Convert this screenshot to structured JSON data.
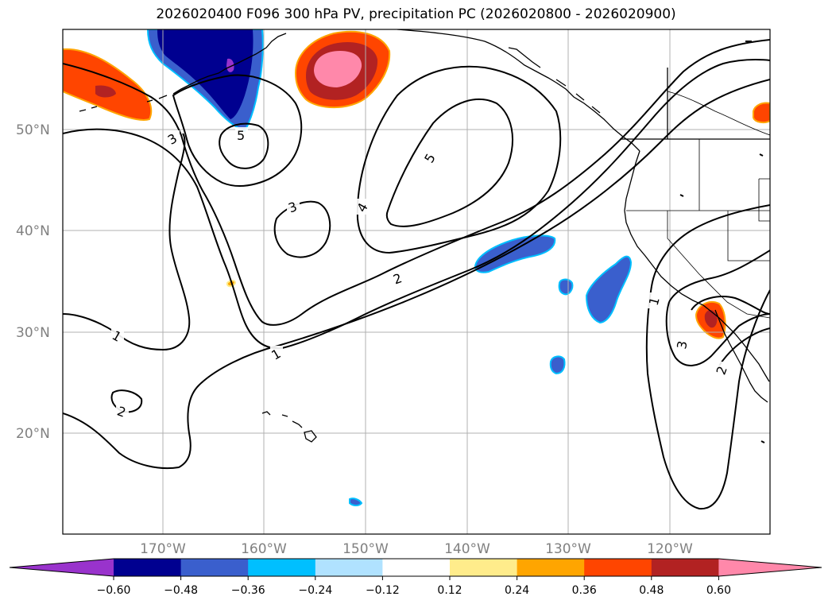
{
  "title": "2026020400 F096 300 hPa PV, precipitation PC (2026020800 - 2026020900)",
  "lat_labels": [
    "50°N",
    "40°N",
    "30°N",
    "20°N"
  ],
  "lon_labels": [
    "170°W",
    "160°W",
    "150°W",
    "140°W",
    "130°W",
    "120°W"
  ],
  "colorbar": {
    "ticks": [
      "−0.60",
      "−0.48",
      "−0.36",
      "−0.24",
      "−0.12",
      "0.12",
      "0.24",
      "0.36",
      "0.48",
      "0.60"
    ],
    "colors": [
      "#9933cc",
      "#000090",
      "#3a5fcd",
      "#00bfff",
      "#b0e2ff",
      "#ffffff",
      "#ffec8b",
      "#ffa500",
      "#ff4500",
      "#b22222",
      "#ff88aa"
    ]
  },
  "contour_labels": [
    "3",
    "5",
    "3",
    "4",
    "5",
    "2",
    "1",
    "1",
    "2",
    "1",
    "3",
    "2"
  ],
  "colors": {
    "grid": "#b0b0b0",
    "contour": "#000000",
    "coast": "#000000"
  }
}
